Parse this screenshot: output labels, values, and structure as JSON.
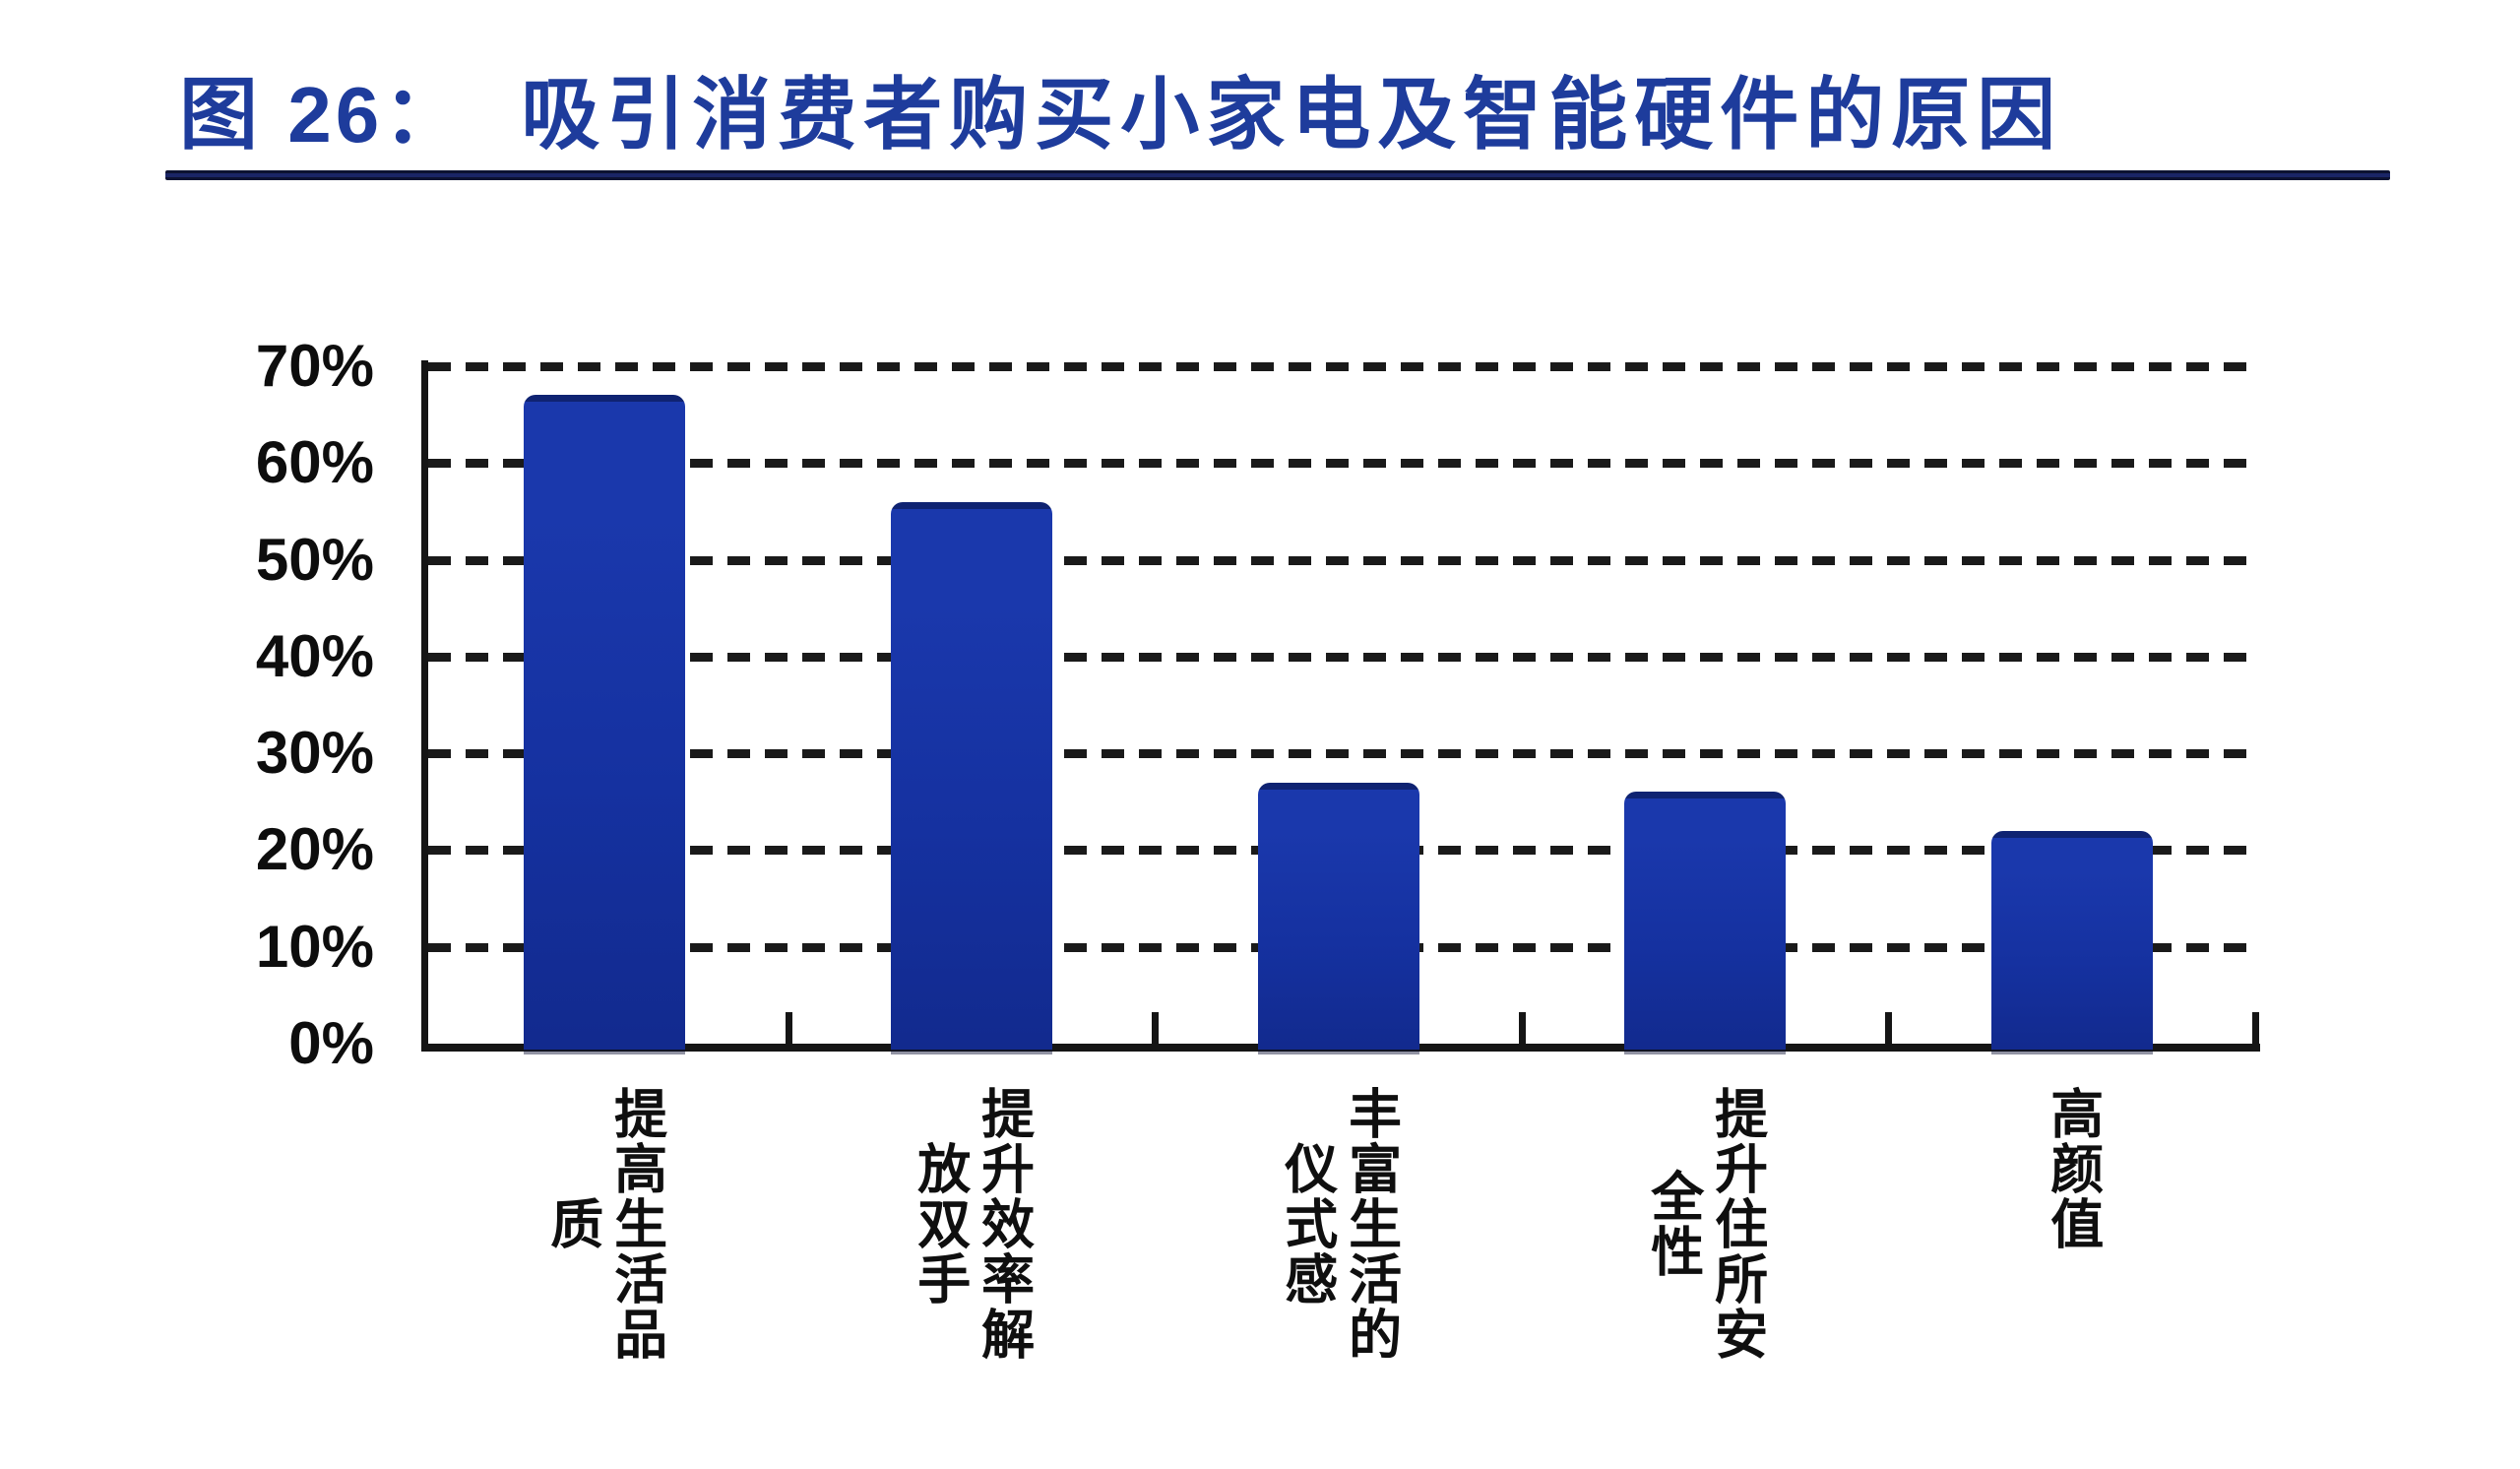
{
  "header": {
    "figure_no": "图 26：",
    "title": "吸引消费者购买小家电及智能硬件的原因"
  },
  "colors": {
    "bar_blue": "#1632A2",
    "title_blue": "#1E3C9C",
    "underline_navy": "#141B4D",
    "axis_black": "#151515"
  },
  "chart_data": {
    "type": "bar",
    "title": "图 26： 吸引消费者购买小家电及智能硬件的原因",
    "categories": [
      "提高生活品质",
      "提升效率解放双手",
      "丰富生活的仪式感",
      "提升住所安全性",
      "高颜值"
    ],
    "values": [
      67,
      56,
      27,
      26,
      22
    ],
    "unit": "%",
    "xlabel": "",
    "ylabel": "",
    "ylim": [
      0,
      70
    ],
    "y_ticks": [
      "70%",
      "60%",
      "50%",
      "40%",
      "30%",
      "20%",
      "10%",
      "0%"
    ],
    "y_tick_values": [
      70,
      60,
      50,
      40,
      30,
      20,
      10,
      0
    ],
    "grid": "horizontal-dashed",
    "legend_position": "none",
    "bar_color": "#1632A2"
  }
}
